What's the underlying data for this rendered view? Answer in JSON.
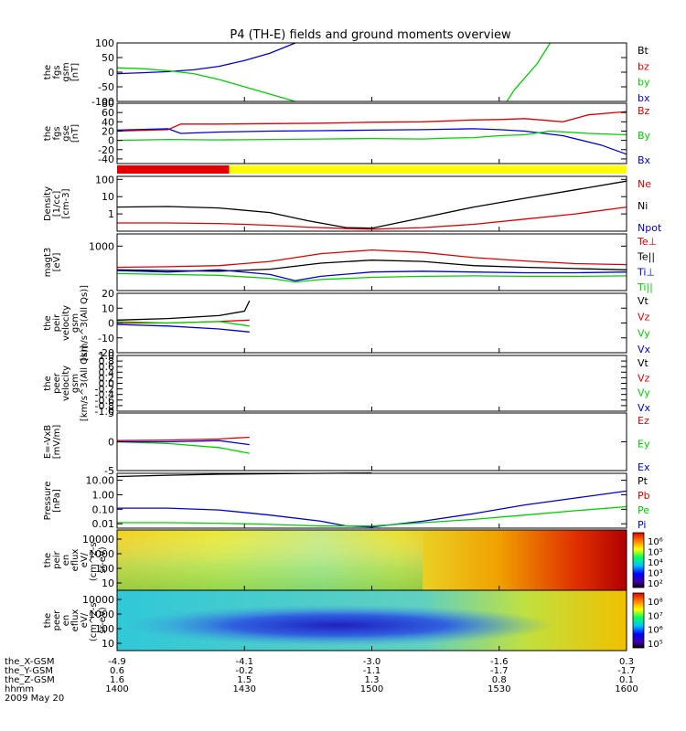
{
  "title": "P4 (TH-E) fields and ground moments overview",
  "colors": {
    "black": "#000000",
    "red": "#e00000",
    "green": "#00d000",
    "blue": "#0000d0",
    "yellow": "#ffff00"
  },
  "bottom_labels": {
    "row_names": [
      "the_X-GSM",
      "the_Y-GSM",
      "the_Z-GSM",
      "hhmm",
      "2009 May 20"
    ],
    "columns": [
      [
        "-4.9",
        "0.6",
        "1.6",
        "1400"
      ],
      [
        "-4.1",
        "-0.2",
        "1.5",
        "1430"
      ],
      [
        "-3.0",
        "-1.1",
        "1.3",
        "1500"
      ],
      [
        "-1.6",
        "-1.7",
        "0.8",
        "1530"
      ],
      [
        "0.3",
        "-1.7",
        "0.1",
        "1600"
      ]
    ]
  },
  "chart_data": [
    {
      "type": "line",
      "name": "fgs_gsm",
      "ylabel": [
        "the",
        "fgs",
        "gsm",
        "[nT]"
      ],
      "ylim": [
        -100,
        100
      ],
      "ticks": [
        "100",
        "50",
        "0",
        "-50",
        "-100"
      ],
      "tick_values": [
        100,
        50,
        0,
        -50,
        -100
      ],
      "legend": [
        {
          "text": "Bt",
          "color": "black"
        },
        {
          "text": "bz",
          "color": "red"
        },
        {
          "text": "by",
          "color": "green"
        },
        {
          "text": "bx",
          "color": "blue"
        }
      ],
      "series": [
        {
          "color": "blue",
          "x": [
            1400,
            1410,
            1420,
            1430,
            1440,
            1450,
            1460,
            1470
          ],
          "y": [
            -5,
            -2,
            2,
            8,
            20,
            40,
            65,
            100
          ]
        },
        {
          "color": "green",
          "x": [
            1400,
            1410,
            1420,
            1430,
            1440,
            1450,
            1460,
            1470
          ],
          "y": [
            15,
            12,
            5,
            -5,
            -25,
            -50,
            -75,
            -100
          ]
        },
        {
          "color": "green",
          "x": [
            1553,
            1556,
            1560,
            1565,
            1570
          ],
          "y": [
            -100,
            -60,
            -20,
            30,
            100
          ]
        }
      ]
    },
    {
      "type": "line",
      "name": "fgs_gse",
      "ylabel": [
        "the",
        "fgs",
        "gse",
        "[nT]"
      ],
      "ylim": [
        -50,
        80
      ],
      "ticks": [
        "80",
        "60",
        "40",
        "20",
        "0",
        "-20",
        "-40"
      ],
      "tick_values": [
        80,
        60,
        40,
        20,
        0,
        -20,
        -40
      ],
      "legend": [
        {
          "text": "Bz",
          "color": "red"
        },
        {
          "text": "By",
          "color": "green"
        },
        {
          "text": "Bx",
          "color": "blue"
        }
      ],
      "series": [
        {
          "color": "red",
          "x": [
            1400,
            1420,
            1425,
            1440,
            1460,
            1480,
            1500,
            1520,
            1530,
            1540,
            1550,
            1560,
            1575,
            1585,
            1600
          ],
          "y": [
            20,
            23,
            35,
            35,
            36,
            37,
            39,
            40,
            42,
            44,
            45,
            47,
            40,
            55,
            62
          ]
        },
        {
          "color": "blue",
          "x": [
            1400,
            1420,
            1425,
            1440,
            1460,
            1480,
            1500,
            1520,
            1530,
            1540,
            1550,
            1560,
            1575,
            1590,
            1600
          ],
          "y": [
            22,
            25,
            15,
            18,
            20,
            21,
            22,
            23,
            24,
            25,
            23,
            20,
            10,
            -10,
            -30
          ]
        },
        {
          "color": "green",
          "x": [
            1400,
            1420,
            1440,
            1460,
            1480,
            1500,
            1520,
            1530,
            1540,
            1550,
            1560,
            1570,
            1585,
            1600
          ],
          "y": [
            0,
            2,
            1,
            2,
            3,
            4,
            3,
            5,
            6,
            10,
            12,
            20,
            15,
            12
          ]
        }
      ]
    },
    {
      "type": "bar",
      "name": "mode_bar",
      "segments": [
        {
          "x0": 1400,
          "x1": 1444,
          "color": "red"
        },
        {
          "x0": 1444,
          "x1": 1600,
          "color": "yellow"
        }
      ]
    },
    {
      "type": "line",
      "name": "density",
      "log": true,
      "ylabel": [
        "Density",
        "[1/cc]",
        "[cm-3]"
      ],
      "ylim": [
        0.1,
        150
      ],
      "ticks": [
        "100",
        "10",
        "1"
      ],
      "tick_values": [
        100,
        10,
        1
      ],
      "legend": [
        {
          "text": "Ne",
          "color": "red"
        },
        {
          "text": "Ni",
          "color": "black"
        },
        {
          "text": "Npot",
          "color": "blue"
        }
      ],
      "series": [
        {
          "color": "black",
          "x": [
            1400,
            1420,
            1440,
            1460,
            1475,
            1490,
            1500,
            1520,
            1540,
            1560,
            1580,
            1600
          ],
          "y": [
            2.5,
            2.7,
            2.2,
            1.2,
            0.4,
            0.16,
            0.15,
            0.6,
            2.5,
            8,
            25,
            80
          ]
        },
        {
          "color": "red",
          "x": [
            1400,
            1420,
            1440,
            1460,
            1475,
            1490,
            1500,
            1520,
            1540,
            1560,
            1580,
            1600
          ],
          "y": [
            0.3,
            0.3,
            0.28,
            0.22,
            0.17,
            0.14,
            0.13,
            0.16,
            0.25,
            0.5,
            1,
            2.5
          ]
        }
      ]
    },
    {
      "type": "line",
      "name": "moments_temp",
      "log": true,
      "ylabel": [
        "magt3",
        "[eV]"
      ],
      "ylim": [
        80,
        2000
      ],
      "ticks": [
        "1000"
      ],
      "tick_values": [
        1000
      ],
      "legend": [
        {
          "text": "Te⊥",
          "color": "red"
        },
        {
          "text": "Te||",
          "color": "black"
        },
        {
          "text": "Ti⊥",
          "color": "blue"
        },
        {
          "text": "Ti||",
          "color": "green"
        }
      ],
      "series": [
        {
          "color": "red",
          "x": [
            1400,
            1420,
            1440,
            1460,
            1480,
            1500,
            1520,
            1540,
            1560,
            1580,
            1600
          ],
          "y": [
            300,
            310,
            330,
            420,
            650,
            800,
            700,
            520,
            430,
            370,
            350
          ]
        },
        {
          "color": "black",
          "x": [
            1400,
            1420,
            1440,
            1460,
            1480,
            1500,
            1520,
            1540,
            1560,
            1580,
            1600
          ],
          "y": [
            260,
            250,
            240,
            270,
            380,
            450,
            420,
            330,
            300,
            280,
            260
          ]
        },
        {
          "color": "blue",
          "x": [
            1400,
            1420,
            1440,
            1460,
            1470,
            1480,
            1500,
            1520,
            1540,
            1560,
            1580,
            1600
          ],
          "y": [
            250,
            230,
            260,
            200,
            140,
            180,
            230,
            240,
            230,
            220,
            220,
            230
          ]
        },
        {
          "color": "green",
          "x": [
            1400,
            1420,
            1440,
            1460,
            1470,
            1480,
            1500,
            1520,
            1540,
            1560,
            1580,
            1600
          ],
          "y": [
            210,
            200,
            190,
            160,
            130,
            150,
            170,
            180,
            185,
            180,
            180,
            185
          ]
        }
      ]
    },
    {
      "type": "line",
      "name": "peir_velocity",
      "ylabel": [
        "the",
        "peir",
        "velocity",
        "gsm",
        "[km/s^3(All Qs)]"
      ],
      "ylim": [
        -20,
        20
      ],
      "ticks": [
        "20",
        "10",
        "0",
        "-10",
        "-20"
      ],
      "tick_values": [
        20,
        10,
        0,
        -10,
        -20
      ],
      "legend": [
        {
          "text": "Vt",
          "color": "black"
        },
        {
          "text": "Vz",
          "color": "red"
        },
        {
          "text": "Vy",
          "color": "green"
        },
        {
          "text": "Vx",
          "color": "blue"
        }
      ],
      "series": [
        {
          "color": "black",
          "x": [
            1400,
            1420,
            1440,
            1450,
            1452
          ],
          "y": [
            2,
            3,
            5,
            8,
            15
          ]
        },
        {
          "color": "red",
          "x": [
            1400,
            1420,
            1440,
            1452
          ],
          "y": [
            0,
            0,
            1,
            2
          ]
        },
        {
          "color": "green",
          "x": [
            1400,
            1420,
            1440,
            1452
          ],
          "y": [
            1,
            0,
            1,
            -2
          ]
        },
        {
          "color": "blue",
          "x": [
            1400,
            1420,
            1440,
            1452
          ],
          "y": [
            -1,
            -2,
            -4,
            -6
          ]
        }
      ]
    },
    {
      "type": "line",
      "name": "peer_velocity",
      "ylabel": [
        "the",
        "peer",
        "velocity",
        "gsm",
        "[km/s^3(All Qs)]"
      ],
      "ylim": [
        -1,
        1
      ],
      "ticks": [
        "1.0",
        "0.8",
        "0.6",
        "0.4",
        "0.2",
        "0.0",
        "-0.2",
        "-0.4",
        "-0.6",
        "-0.8",
        "-1.0"
      ],
      "tick_values": [
        1,
        0.8,
        0.6,
        0.4,
        0.2,
        0,
        -0.2,
        -0.4,
        -0.6,
        -0.8,
        -1
      ],
      "legend": [
        {
          "text": "Vt",
          "color": "black"
        },
        {
          "text": "Vz",
          "color": "red"
        },
        {
          "text": "Vy",
          "color": "green"
        },
        {
          "text": "Vx",
          "color": "blue"
        }
      ],
      "series": []
    },
    {
      "type": "line",
      "name": "efield",
      "ylabel": [
        "E=-VxB",
        "[mV/m]"
      ],
      "ylim": [
        -5,
        5
      ],
      "ticks": [
        "5",
        "0",
        "-5"
      ],
      "tick_values": [
        5,
        0,
        -5
      ],
      "legend": [
        {
          "text": "Ez",
          "color": "red"
        },
        {
          "text": "Ey",
          "color": "green"
        },
        {
          "text": "Ex",
          "color": "blue"
        }
      ],
      "series": [
        {
          "color": "green",
          "x": [
            1400,
            1420,
            1440,
            1452
          ],
          "y": [
            0,
            -0.3,
            -1,
            -2
          ]
        },
        {
          "color": "red",
          "x": [
            1400,
            1420,
            1440,
            1452
          ],
          "y": [
            0.2,
            0.3,
            0.5,
            0.8
          ]
        },
        {
          "color": "blue",
          "x": [
            1400,
            1420,
            1440,
            1452
          ],
          "y": [
            0,
            0,
            0.2,
            -0.5
          ]
        }
      ]
    },
    {
      "type": "line",
      "name": "pressure",
      "log": true,
      "ylabel": [
        "Pressure",
        "[nPa]"
      ],
      "ylim": [
        0.005,
        30
      ],
      "ticks": [
        "10.00",
        "1.00",
        "0.10",
        "0.01"
      ],
      "tick_values": [
        10,
        1,
        0.1,
        0.01
      ],
      "legend": [
        {
          "text": "Pt",
          "color": "black"
        },
        {
          "text": "Pb",
          "color": "red"
        },
        {
          "text": "Pe",
          "color": "green"
        },
        {
          "text": "Pi",
          "color": "blue"
        }
      ],
      "series": [
        {
          "color": "black",
          "x": [
            1400,
            1420,
            1440,
            1460,
            1480,
            1500
          ],
          "y": [
            18,
            22,
            26,
            28,
            30,
            32
          ]
        },
        {
          "color": "blue",
          "x": [
            1400,
            1420,
            1440,
            1460,
            1480,
            1490,
            1500,
            1520,
            1540,
            1560,
            1580,
            1600
          ],
          "y": [
            0.12,
            0.12,
            0.09,
            0.04,
            0.015,
            0.007,
            0.006,
            0.015,
            0.05,
            0.2,
            0.6,
            1.8
          ]
        },
        {
          "color": "green",
          "x": [
            1400,
            1420,
            1440,
            1460,
            1480,
            1500,
            1520,
            1540,
            1560,
            1580,
            1600
          ],
          "y": [
            0.012,
            0.012,
            0.011,
            0.009,
            0.007,
            0.007,
            0.012,
            0.02,
            0.04,
            0.08,
            0.15
          ]
        }
      ]
    },
    {
      "type": "heatmap",
      "name": "peir_eflux",
      "ylabel": [
        "the",
        "peir",
        "en",
        "eflux",
        "eV/",
        "(cm^2-s-",
        "sr-eV)"
      ],
      "ticks": [
        "10000",
        "1000",
        "100",
        "10"
      ],
      "colorbar_ticks": [
        "10⁶",
        "10⁵",
        "10⁴",
        "10³",
        "10²"
      ]
    },
    {
      "type": "heatmap",
      "name": "peer_eflux",
      "ylabel": [
        "the",
        "peer",
        "en",
        "eflux",
        "eV/",
        "(cm^2-s-",
        "sr-eV)"
      ],
      "ticks": [
        "10000",
        "1000",
        "100",
        "10"
      ],
      "colorbar_ticks": [
        "10⁸",
        "10⁷",
        "10⁶",
        "10⁵"
      ]
    }
  ]
}
